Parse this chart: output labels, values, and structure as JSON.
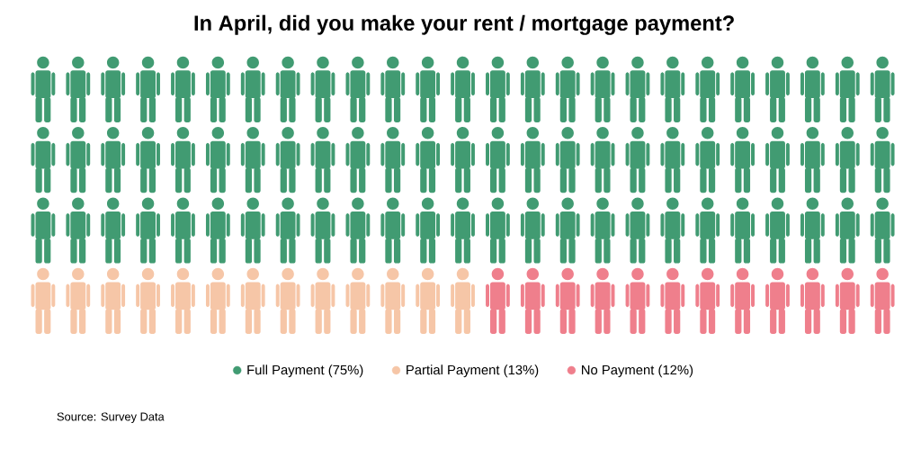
{
  "chart_data": {
    "type": "other",
    "title": "In April, did you make your rent / mortgage payment?",
    "categories": [
      "Full Payment",
      "Partial Payment",
      "No Payment"
    ],
    "values": [
      75,
      13,
      12
    ],
    "value_labels": [
      "(75%)",
      "(13%)",
      "(12%)"
    ],
    "colors": [
      "#419b72",
      "#f6c6a7",
      "#ef7f8c"
    ],
    "annotations": [
      "Source: Survey Data"
    ]
  }
}
